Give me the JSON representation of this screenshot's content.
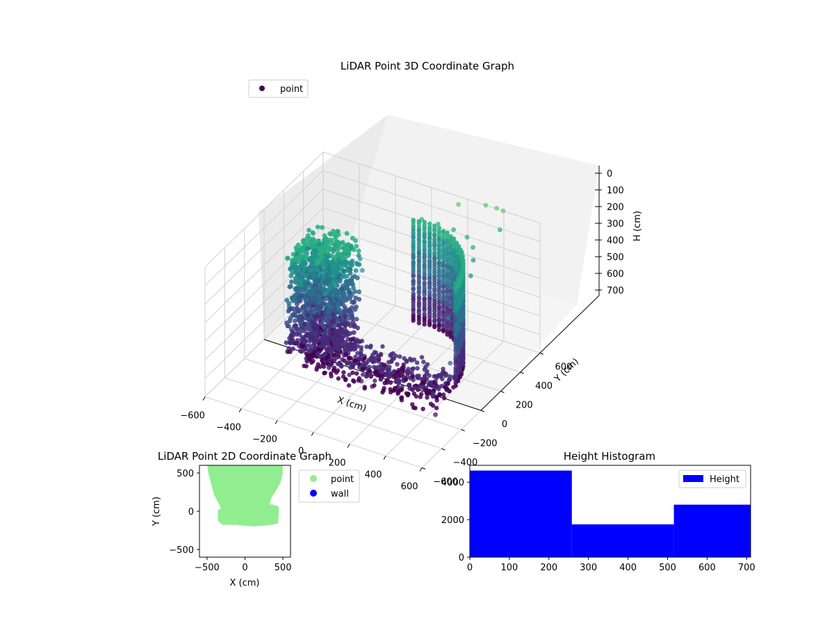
{
  "chart_data": [
    {
      "type": "scatter3d",
      "title": "LiDAR Point 3D Coordinate Graph",
      "xlabel": "X (cm)",
      "ylabel": "Y (cm)",
      "zlabel": "H (cm)",
      "xlim": [
        -600,
        600
      ],
      "ylim": [
        -600,
        600
      ],
      "zlim": [
        0,
        700
      ],
      "z_inverted": true,
      "xticks": [
        "−600",
        "−400",
        "−200",
        "0",
        "200",
        "400",
        "600"
      ],
      "yticks": [
        "−600",
        "−400",
        "−200",
        "0",
        "200",
        "400",
        "600"
      ],
      "zticks": [
        "0",
        "100",
        "200",
        "300",
        "400",
        "500",
        "600",
        "700"
      ],
      "legend": {
        "position": "upper-left",
        "entries": [
          {
            "label": "point",
            "color": "#440154"
          }
        ]
      },
      "colormap": "viridis",
      "grid": true,
      "series": [
        {
          "name": "point",
          "color": "#440154",
          "points": [
            {
              "x": -380,
              "y": 90,
              "h": 100
            },
            {
              "x": -300,
              "y": 160,
              "h": 150
            },
            {
              "x": -220,
              "y": 190,
              "h": 180
            },
            {
              "x": -150,
              "y": 150,
              "h": 200
            },
            {
              "x": -100,
              "y": 80,
              "h": 210
            },
            {
              "x": 0,
              "y": 500,
              "h": 120
            },
            {
              "x": 80,
              "y": 520,
              "h": 130
            },
            {
              "x": 160,
              "y": 530,
              "h": 140
            },
            {
              "x": 240,
              "y": 520,
              "h": 150
            },
            {
              "x": 300,
              "y": 470,
              "h": 160
            },
            {
              "x": 340,
              "y": 400,
              "h": 180
            },
            {
              "x": 380,
              "y": 300,
              "h": 200
            },
            {
              "x": 400,
              "y": 150,
              "h": 230
            },
            {
              "x": 420,
              "y": 0,
              "h": 260
            },
            {
              "x": -350,
              "y": 50,
              "h": 420
            },
            {
              "x": -300,
              "y": 120,
              "h": 450
            },
            {
              "x": -200,
              "y": 60,
              "h": 500
            },
            {
              "x": -120,
              "y": -30,
              "h": 560
            },
            {
              "x": -60,
              "y": -100,
              "h": 620
            },
            {
              "x": 20,
              "y": -150,
              "h": 650
            },
            {
              "x": 80,
              "y": -150,
              "h": 660
            },
            {
              "x": 150,
              "y": 400,
              "h": 560
            },
            {
              "x": 250,
              "y": 380,
              "h": 520
            },
            {
              "x": 330,
              "y": 300,
              "h": 480
            },
            {
              "x": 400,
              "y": 150,
              "h": 470
            },
            {
              "x": 430,
              "y": 0,
              "h": 500
            },
            {
              "x": 430,
              "y": -150,
              "h": 700
            },
            {
              "x": 160,
              "y": 580,
              "h": 30
            },
            {
              "x": 300,
              "y": 600,
              "h": 0
            },
            {
              "x": 350,
              "y": 620,
              "h": 10
            },
            {
              "x": 380,
              "y": 630,
              "h": 20
            },
            {
              "x": 400,
              "y": 560,
              "h": 80
            }
          ]
        }
      ]
    },
    {
      "type": "scatter",
      "title": "LiDAR Point 2D Coordinate Graph",
      "xlabel": "X (cm)",
      "ylabel": "Y (cm)",
      "xlim": [
        -600,
        600
      ],
      "ylim": [
        -600,
        600
      ],
      "xticks": [
        "−500",
        "0",
        "500"
      ],
      "yticks": [
        "−500",
        "0",
        "500"
      ],
      "legend": {
        "position": "outside-right",
        "entries": [
          {
            "label": "point",
            "color": "#90ee90"
          },
          {
            "label": "wall",
            "color": "#0000ff"
          }
        ]
      },
      "series": [
        {
          "name": "point",
          "color": "#90ee90",
          "outline": [
            {
              "x": -470,
              "y": 600
            },
            {
              "x": 470,
              "y": 600
            },
            {
              "x": 470,
              "y": 500
            },
            {
              "x": 440,
              "y": 380
            },
            {
              "x": 390,
              "y": 290
            },
            {
              "x": 330,
              "y": 200
            },
            {
              "x": 300,
              "y": 130
            },
            {
              "x": 300,
              "y": 60
            },
            {
              "x": 360,
              "y": 60
            },
            {
              "x": 420,
              "y": 40
            },
            {
              "x": 410,
              "y": -140
            },
            {
              "x": 260,
              "y": -160
            },
            {
              "x": 110,
              "y": -170
            },
            {
              "x": -20,
              "y": -160
            },
            {
              "x": -110,
              "y": -150
            },
            {
              "x": -290,
              "y": -150
            },
            {
              "x": -330,
              "y": -110
            },
            {
              "x": -330,
              "y": 0
            },
            {
              "x": -280,
              "y": 20
            },
            {
              "x": -300,
              "y": 70
            },
            {
              "x": -380,
              "y": 220
            },
            {
              "x": -420,
              "y": 370
            },
            {
              "x": -450,
              "y": 480
            }
          ]
        },
        {
          "name": "wall",
          "color": "#0000ff",
          "outline": []
        }
      ]
    },
    {
      "type": "bar",
      "title": "Height Histogram",
      "xlim": [
        0,
        710
      ],
      "ylim": [
        0,
        4900
      ],
      "xticks": [
        "0",
        "100",
        "200",
        "300",
        "400",
        "500",
        "600",
        "700"
      ],
      "yticks": [
        "0",
        "2000",
        "4000"
      ],
      "legend": {
        "position": "upper-right",
        "entries": [
          {
            "label": "Height",
            "color": "#0000ff"
          }
        ]
      },
      "series": [
        {
          "name": "Height",
          "color": "#0000ff",
          "bins": [
            {
              "start": 0,
              "end": 258,
              "count": 4620
            },
            {
              "start": 258,
              "end": 516,
              "count": 1750
            },
            {
              "start": 516,
              "end": 710,
              "count": 2800
            }
          ]
        }
      ]
    }
  ]
}
